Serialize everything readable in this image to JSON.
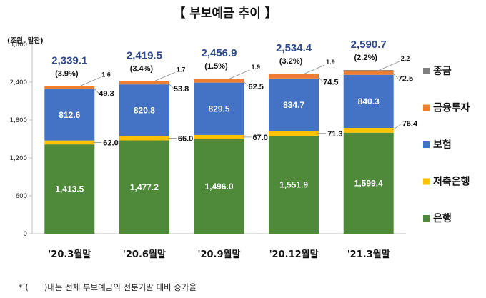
{
  "chart_data": {
    "type": "bar",
    "stacked": true,
    "title": "【 부보예금 추이 】",
    "unit": "(조원, 말잔)",
    "ylim": [
      0,
      3000
    ],
    "yticks": [
      0,
      600,
      1200,
      1800,
      2400,
      3000
    ],
    "ytick_labels": [
      "0",
      "600",
      "1,200",
      "1,800",
      "2,400",
      "3,000"
    ],
    "categories": [
      "'20.3월말",
      "'20.6월말",
      "'20.9월말",
      "'20.12월말",
      "'21.3월말"
    ],
    "series": [
      {
        "name": "은행",
        "color": "#4E8A3A",
        "values": [
          1413.5,
          1477.2,
          1496.0,
          1551.9,
          1599.4
        ],
        "labels": [
          "1,413.5",
          "1,477.2",
          "1,496.0",
          "1,551.9",
          "1,599.4"
        ]
      },
      {
        "name": "저축은행",
        "color": "#FFC000",
        "values": [
          62.0,
          66.0,
          67.0,
          71.3,
          76.4
        ],
        "labels": [
          "62.0",
          "66.0",
          "67.0",
          "71.3",
          "76.4"
        ]
      },
      {
        "name": "보험",
        "color": "#4472C4",
        "values": [
          812.6,
          820.8,
          829.5,
          834.7,
          840.3
        ],
        "labels": [
          "812.6",
          "820.8",
          "829.5",
          "834.7",
          "840.3"
        ]
      },
      {
        "name": "금융투자",
        "color": "#ED7D31",
        "values": [
          49.3,
          53.8,
          62.5,
          74.5,
          72.5
        ],
        "labels": [
          "49.3",
          "53.8",
          "62.5",
          "74.5",
          "72.5"
        ]
      },
      {
        "name": "종금",
        "color": "#7F7F7F",
        "values": [
          1.6,
          1.7,
          1.9,
          1.9,
          2.2
        ],
        "labels": [
          "1.6",
          "1.7",
          "1.9",
          "1.9",
          "2.2"
        ]
      }
    ],
    "totals": [
      "2,339.1",
      "2,419.5",
      "2,456.9",
      "2,534.4",
      "2,590.7"
    ],
    "total_values": [
      2339.1,
      2419.5,
      2456.9,
      2534.4,
      2590.7
    ],
    "growth": [
      "(3.9%)",
      "(3.4%)",
      "(1.5%)",
      "(3.2%)",
      "(2.2%)"
    ],
    "legend_order": [
      "종금",
      "금융투자",
      "보험",
      "저축은행",
      "은행"
    ],
    "legend_position": "right",
    "footnote": "* (      )내는 전체 부보예금의 전분기말 대비 증가율"
  }
}
